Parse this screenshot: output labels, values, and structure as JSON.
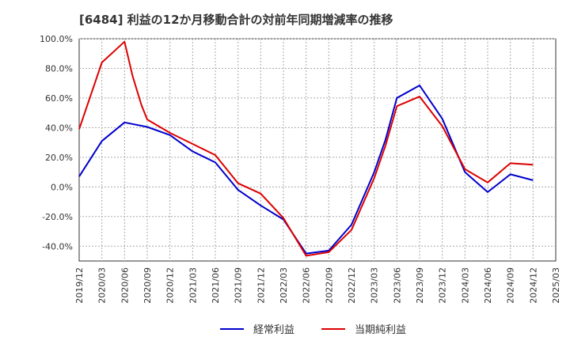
{
  "chart_data": {
    "type": "line",
    "title": "[6484]  利益の12か月移動合計の対前年同期増減率の推移",
    "xlabel": "",
    "ylabel": "",
    "ylim": [
      -50,
      100
    ],
    "y_ticks": [
      100,
      80,
      60,
      40,
      20,
      0,
      -20,
      -40
    ],
    "y_tick_labels": [
      "100.0%",
      "80.0%",
      "60.0%",
      "40.0%",
      "20.0%",
      "0.0%",
      "-20.0%",
      "-40.0%"
    ],
    "x_labels": [
      "2019/12",
      "2020/03",
      "2020/06",
      "2020/09",
      "2020/12",
      "2021/03",
      "2021/06",
      "2021/09",
      "2021/12",
      "2022/03",
      "2022/06",
      "2022/09",
      "2022/12",
      "2023/03",
      "2023/06",
      "2023/09",
      "2023/12",
      "2024/03",
      "2024/06",
      "2024/09",
      "2024/12",
      "2025/03"
    ],
    "grid": true,
    "legend_position": "bottom",
    "series": [
      {
        "name": "経常利益",
        "color": "#0000cc",
        "x": [
          0,
          1,
          2,
          3,
          4,
          5,
          6,
          7,
          8,
          9,
          10,
          11,
          12,
          13,
          13.5,
          14,
          15,
          16,
          17,
          18,
          19,
          20
        ],
        "values": [
          7,
          31,
          43.5,
          40.5,
          35,
          24,
          16.5,
          -2,
          -12.5,
          -22,
          -45,
          -43,
          -25.5,
          10,
          32,
          60,
          68.5,
          46,
          10,
          -3.5,
          8.5,
          4.5
        ]
      },
      {
        "name": "当期純利益",
        "color": "#dd0000",
        "x": [
          0,
          1,
          2,
          2.35,
          2.75,
          3,
          4,
          5,
          6,
          7,
          8,
          9,
          10,
          11,
          12,
          13,
          13.5,
          14,
          15,
          16,
          17,
          18,
          19,
          20
        ],
        "values": [
          39,
          84,
          98,
          75,
          55,
          45.5,
          36.5,
          29,
          21.5,
          2.5,
          -4.5,
          -21,
          -46.5,
          -44,
          -29,
          6,
          28,
          54.5,
          61,
          41,
          12,
          3,
          16,
          15
        ]
      }
    ]
  }
}
